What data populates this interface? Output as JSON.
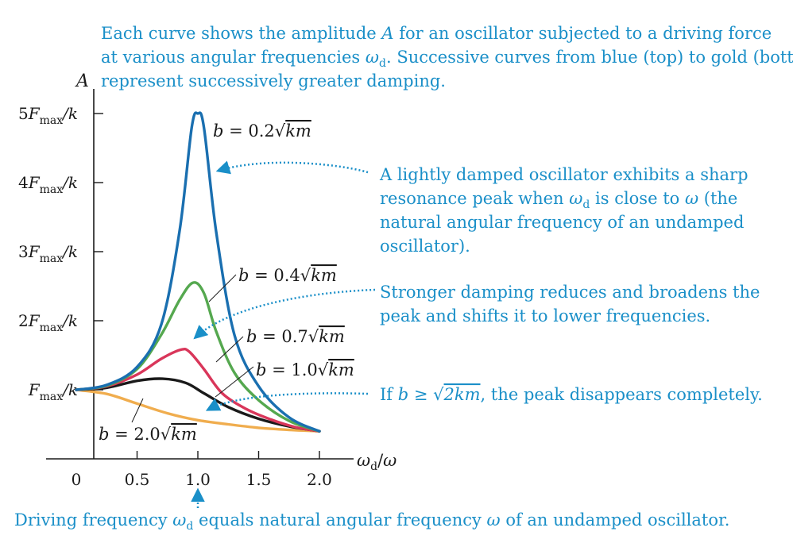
{
  "chart_data": {
    "type": "line",
    "x_axis_label": "ωd/ω",
    "y_axis_label": "A",
    "xlim": [
      0,
      2.0
    ],
    "ylim": [
      0,
      5
    ],
    "x_ticks": [
      {
        "value": 0,
        "label": "0"
      },
      {
        "value": 0.5,
        "label": "0.5"
      },
      {
        "value": 1.0,
        "label": "1.0"
      },
      {
        "value": 1.5,
        "label": "1.5"
      },
      {
        "value": 2.0,
        "label": "2.0"
      }
    ],
    "y_ticks": [
      {
        "value": 1,
        "label": "Fmax/k"
      },
      {
        "value": 2,
        "label": "2Fmax/k"
      },
      {
        "value": 3,
        "label": "3Fmax/k"
      },
      {
        "value": 4,
        "label": "4Fmax/k"
      },
      {
        "value": 5,
        "label": "5Fmax/k"
      }
    ],
    "series": [
      {
        "name": "b = 0.2√km",
        "color": "#1a6fb0",
        "x": [
          0,
          0.25,
          0.5,
          0.7,
          0.85,
          0.95,
          1.0,
          1.05,
          1.15,
          1.3,
          1.5,
          1.75,
          2.0
        ],
        "y": [
          1.0,
          1.07,
          1.33,
          1.95,
          3.3,
          4.8,
          5.0,
          4.8,
          3.3,
          1.8,
          1.05,
          0.6,
          0.4
        ]
      },
      {
        "name": "b = 0.4√km",
        "color": "#55a84f",
        "x": [
          0,
          0.25,
          0.5,
          0.7,
          0.85,
          0.96,
          1.05,
          1.15,
          1.3,
          1.5,
          1.75,
          2.0
        ],
        "y": [
          1.0,
          1.06,
          1.3,
          1.8,
          2.3,
          2.55,
          2.4,
          1.85,
          1.25,
          0.85,
          0.55,
          0.4
        ]
      },
      {
        "name": "b = 0.7√km",
        "color": "#d9365a",
        "x": [
          0,
          0.25,
          0.5,
          0.7,
          0.86,
          0.93,
          1.05,
          1.2,
          1.4,
          1.6,
          1.8,
          2.0
        ],
        "y": [
          1.0,
          1.05,
          1.22,
          1.45,
          1.58,
          1.55,
          1.3,
          0.95,
          0.72,
          0.57,
          0.46,
          0.4
        ]
      },
      {
        "name": "b = 1.0√km",
        "color": "#1a1a1a",
        "x": [
          0,
          0.25,
          0.5,
          0.71,
          0.9,
          1.05,
          1.25,
          1.5,
          1.75,
          2.0
        ],
        "y": [
          1.0,
          1.03,
          1.13,
          1.16,
          1.1,
          0.95,
          0.75,
          0.58,
          0.47,
          0.4
        ]
      },
      {
        "name": "b = 2.0√km",
        "color": "#f0ad4e",
        "x": [
          0,
          0.25,
          0.5,
          0.75,
          1.0,
          1.25,
          1.5,
          1.75,
          2.0
        ],
        "y": [
          1.0,
          0.94,
          0.8,
          0.66,
          0.56,
          0.5,
          0.45,
          0.42,
          0.4
        ]
      }
    ],
    "annotations": {
      "top": "Each curve shows the amplitude A for an oscillator subjected to a driving force at various angular frequencies ωd. Successive curves from blue (top) to gold (bottom) represent successively greater damping.",
      "sharp_peak": "A lightly damped oscillator exhibits a sharp resonance peak when ωd is close to ω (the natural angular frequency of an undamped oscillator).",
      "damping": "Stronger damping reduces and broadens the peak and shifts it to lower frequencies.",
      "no_peak": "If b ≥ √2km, the peak disappears completely.",
      "bottom": "Driving frequency ωd equals natural angular frequency ω of an undamped oscillator."
    }
  }
}
